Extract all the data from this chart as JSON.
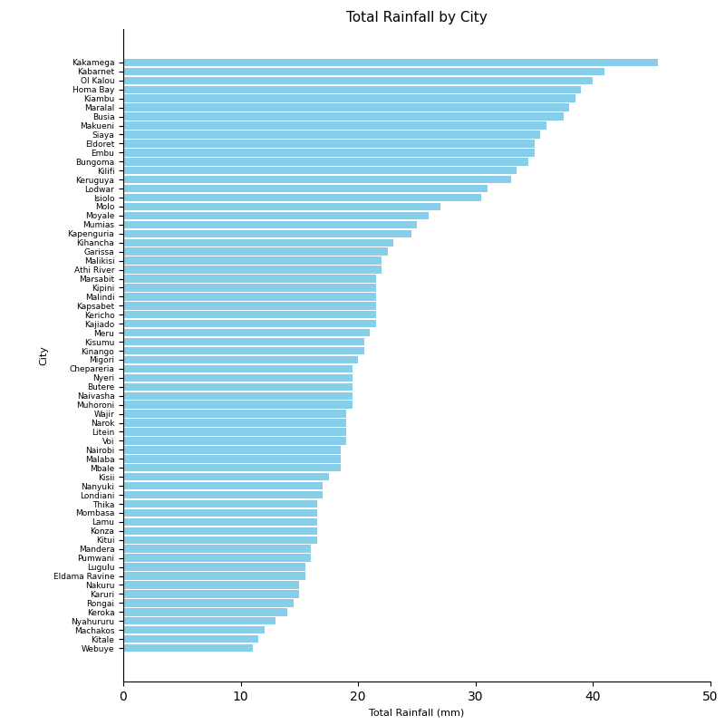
{
  "title": "Total Rainfall by City",
  "xlabel": "Total Rainfall (mm)",
  "ylabel": "City",
  "bar_color": "#87CEEB",
  "cities": [
    "Kakamega",
    "Kabarnet",
    "Ol Kalou",
    "Homa Bay",
    "Kiambu",
    "Maralal",
    "Busia",
    "Makueni",
    "Siaya",
    "Eldoret",
    "Embu",
    "Bungoma",
    "Kilifi",
    "Keruguya",
    "Lodwar",
    "Isiolo",
    "Molo",
    "Moyale",
    "Mumias",
    "Kapenguria",
    "Kihancha",
    "Garissa",
    "Malikisi",
    "Athi River",
    "Marsabit",
    "Kipini",
    "Malindi",
    "Kapsabet",
    "Kericho",
    "Kajiado",
    "Meru",
    "Kisumu",
    "Kinango",
    "Migori",
    "Chepareria",
    "Nyeri",
    "Butere",
    "Naivasha",
    "Muhoroni",
    "Wajir",
    "Narok",
    "Litein",
    "Voi",
    "Nairobi",
    "Malaba",
    "Mbale",
    "Kisii",
    "Nanyuki",
    "Londiani",
    "Thika",
    "Mombasa",
    "Lamu",
    "Konza",
    "Kitui",
    "Mandera",
    "Pumwani",
    "Lugulu",
    "Eldama Ravine",
    "Nakuru",
    "Karuri",
    "Rongai",
    "Keroka",
    "Nyahururu",
    "Machakos",
    "Kitale",
    "Webuye"
  ],
  "values": [
    45.5,
    41.0,
    40.0,
    39.0,
    38.5,
    38.0,
    37.5,
    36.0,
    35.5,
    35.0,
    35.0,
    34.5,
    33.5,
    33.0,
    31.0,
    30.5,
    27.0,
    26.0,
    25.0,
    24.5,
    23.0,
    22.5,
    22.0,
    22.0,
    21.5,
    21.5,
    21.5,
    21.5,
    21.5,
    21.5,
    21.0,
    20.5,
    20.5,
    20.0,
    19.5,
    19.5,
    19.5,
    19.5,
    19.5,
    19.0,
    19.0,
    19.0,
    19.0,
    18.5,
    18.5,
    18.5,
    17.5,
    17.0,
    17.0,
    16.5,
    16.5,
    16.5,
    16.5,
    16.5,
    16.0,
    16.0,
    15.5,
    15.5,
    15.0,
    15.0,
    14.5,
    14.0,
    13.0,
    12.0,
    11.5,
    11.0
  ],
  "figsize": [
    8.0,
    8.0
  ],
  "dpi": 100,
  "title_fontsize": 11,
  "label_fontsize": 8,
  "tick_fontsize": 6.5
}
